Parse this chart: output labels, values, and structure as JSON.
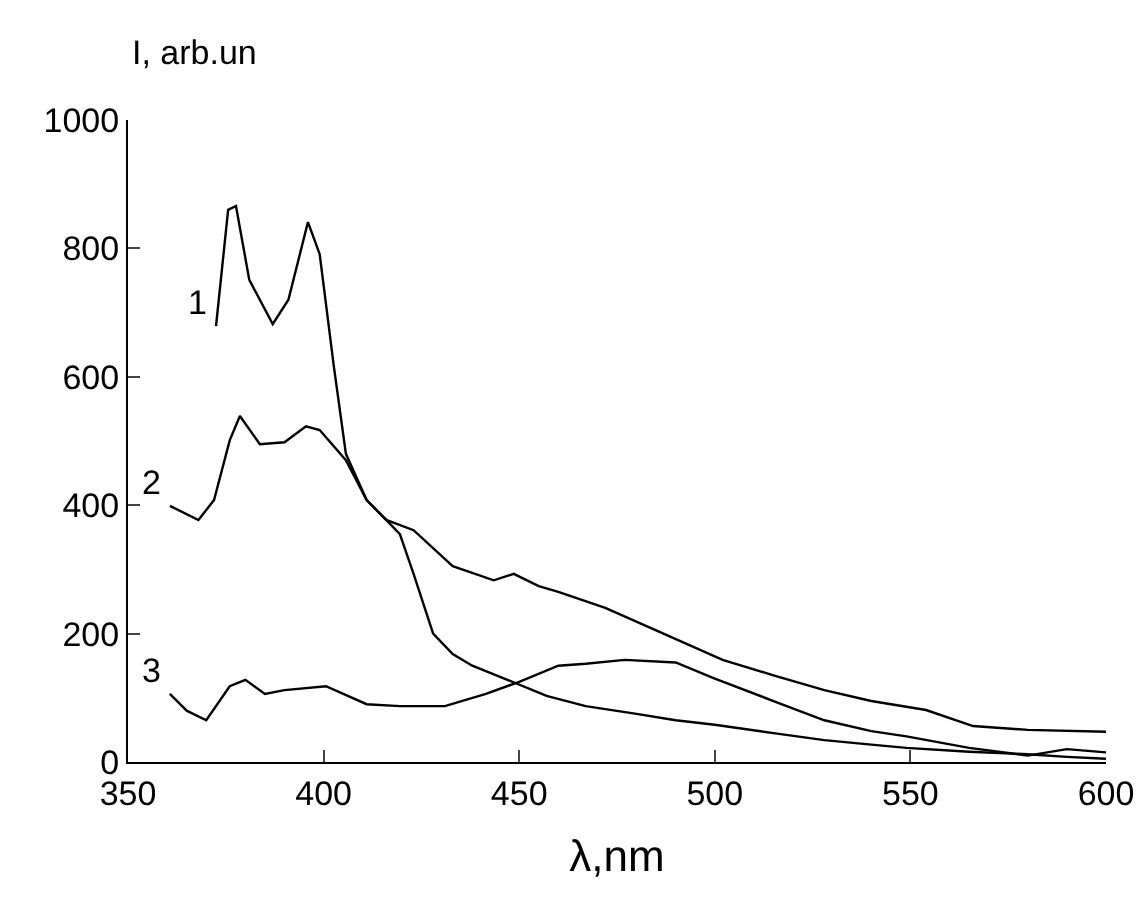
{
  "chart_data": {
    "type": "line",
    "xlabel": "λ,nm",
    "ylabel": "I, arb.un",
    "xlim": [
      350,
      600
    ],
    "ylim": [
      0,
      1000
    ],
    "xticks": [
      350,
      400,
      450,
      500,
      550,
      600
    ],
    "yticks": [
      0,
      200,
      400,
      600,
      800,
      1000
    ],
    "grid": false,
    "legend": false,
    "marker": "none",
    "line_style": "solid",
    "series": [
      {
        "name": "1",
        "color": "#000000",
        "x": [
          372.5,
          375.6,
          377.6,
          381,
          387,
          391,
          396,
          399,
          402.6,
          405.7,
          411,
          416,
          419.5,
          423,
          428,
          433,
          438,
          447,
          457,
          467,
          480,
          490,
          500,
          515,
          528,
          540,
          549,
          565,
          580,
          590,
          600
        ],
        "values": [
          679,
          860,
          866,
          751,
          682,
          720,
          841,
          791,
          617,
          480,
          408,
          377,
          355,
          293,
          200,
          168,
          150,
          128,
          103,
          87,
          75,
          65,
          58,
          45,
          34,
          27,
          22,
          16,
          12,
          8,
          5
        ]
      },
      {
        "name": "2",
        "color": "#000000",
        "x": [
          360.7,
          368,
          372,
          376,
          378.6,
          383.7,
          390,
          395.5,
          399,
          405.7,
          411,
          416,
          423,
          433,
          443.5,
          448.6,
          455,
          460,
          472,
          485,
          502,
          515,
          528,
          540,
          554,
          566,
          580,
          600
        ],
        "values": [
          399,
          377,
          408,
          501,
          539,
          495,
          498,
          523,
          517,
          470,
          408,
          377,
          361,
          305,
          283,
          293,
          274,
          265,
          240,
          205,
          159,
          135,
          112,
          95,
          81,
          56,
          50,
          47
        ]
      },
      {
        "name": "3",
        "color": "#000000",
        "x": [
          360.7,
          365,
          370,
          376,
          380,
          385,
          390,
          400.6,
          411,
          419.5,
          431,
          441.5,
          450,
          460,
          467,
          477,
          490,
          500,
          515,
          528,
          540,
          549,
          565,
          580,
          590,
          600
        ],
        "values": [
          106,
          80,
          65,
          118,
          128,
          106,
          112,
          118,
          90,
          87,
          87,
          106,
          125,
          150,
          153,
          159,
          155,
          130,
          95,
          65,
          48,
          40,
          22,
          10,
          20,
          15
        ]
      }
    ]
  }
}
